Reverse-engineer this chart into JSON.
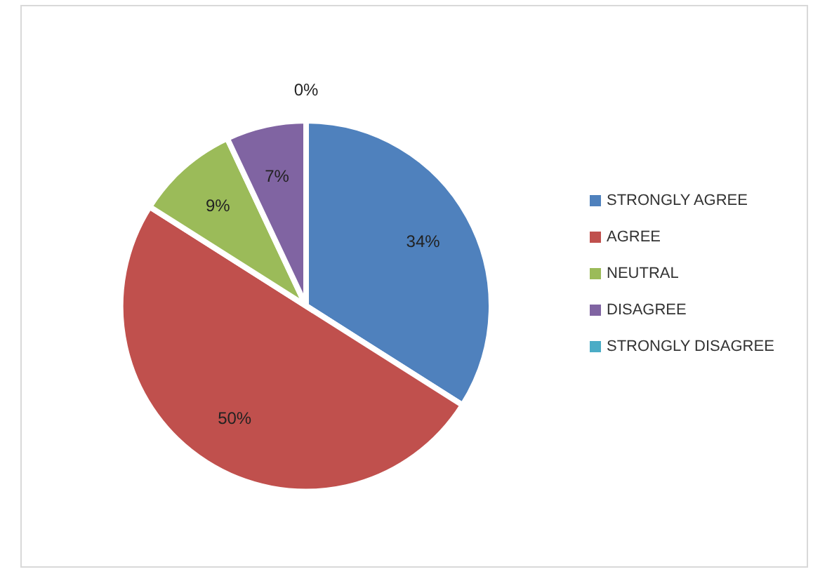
{
  "chart_data": {
    "type": "pie",
    "categories": [
      "STRONGLY AGREE",
      "AGREE",
      "NEUTRAL",
      "DISAGREE",
      "STRONGLY DISAGREE"
    ],
    "values": [
      34,
      50,
      9,
      7,
      0
    ],
    "colors": [
      "#4f81bd",
      "#c0504d",
      "#9bbb59",
      "#8064a2",
      "#4bacc6"
    ],
    "value_labels": [
      "34%",
      "50%",
      "9%",
      "7%",
      "0%"
    ],
    "legend": "right"
  }
}
